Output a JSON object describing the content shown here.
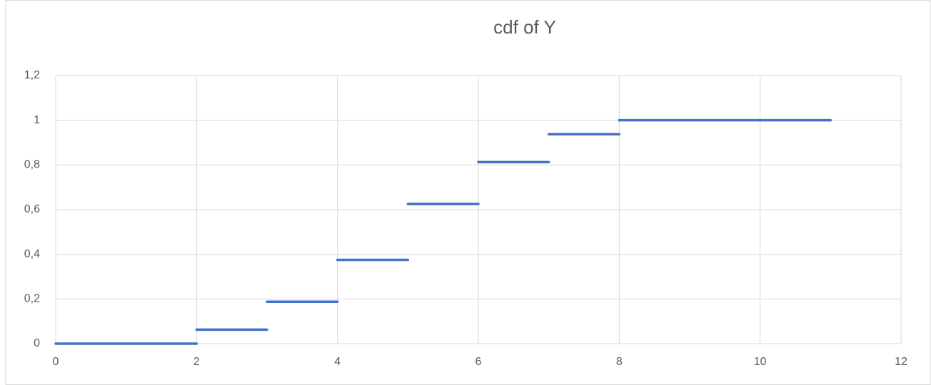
{
  "chart_data": {
    "type": "step",
    "title": "cdf of Y",
    "segments": [
      {
        "x": [
          0,
          2
        ],
        "value": 0
      },
      {
        "x": [
          2,
          3
        ],
        "value": 0.0625
      },
      {
        "x": [
          3,
          4
        ],
        "value": 0.1875
      },
      {
        "x": [
          4,
          5
        ],
        "value": 0.375
      },
      {
        "x": [
          5,
          6
        ],
        "value": 0.625
      },
      {
        "x": [
          6,
          7
        ],
        "value": 0.8125
      },
      {
        "x": [
          7,
          8
        ],
        "value": 0.9375
      },
      {
        "x": [
          8,
          11
        ],
        "value": 1
      }
    ],
    "color": "#4472c4",
    "xlim": [
      0,
      12
    ],
    "xticks": [
      0,
      2,
      4,
      6,
      8,
      10,
      12
    ],
    "ylim": [
      0,
      1.2
    ],
    "yticks": [
      0,
      {
        "value": 0.2,
        "label": "0,2"
      },
      {
        "value": 0.4,
        "label": "0,4"
      },
      {
        "value": 0.6,
        "label": "0,6"
      },
      {
        "value": 0.8,
        "label": "0,8"
      },
      1,
      {
        "value": 1.2,
        "label": "1,2"
      }
    ],
    "grid": true
  }
}
